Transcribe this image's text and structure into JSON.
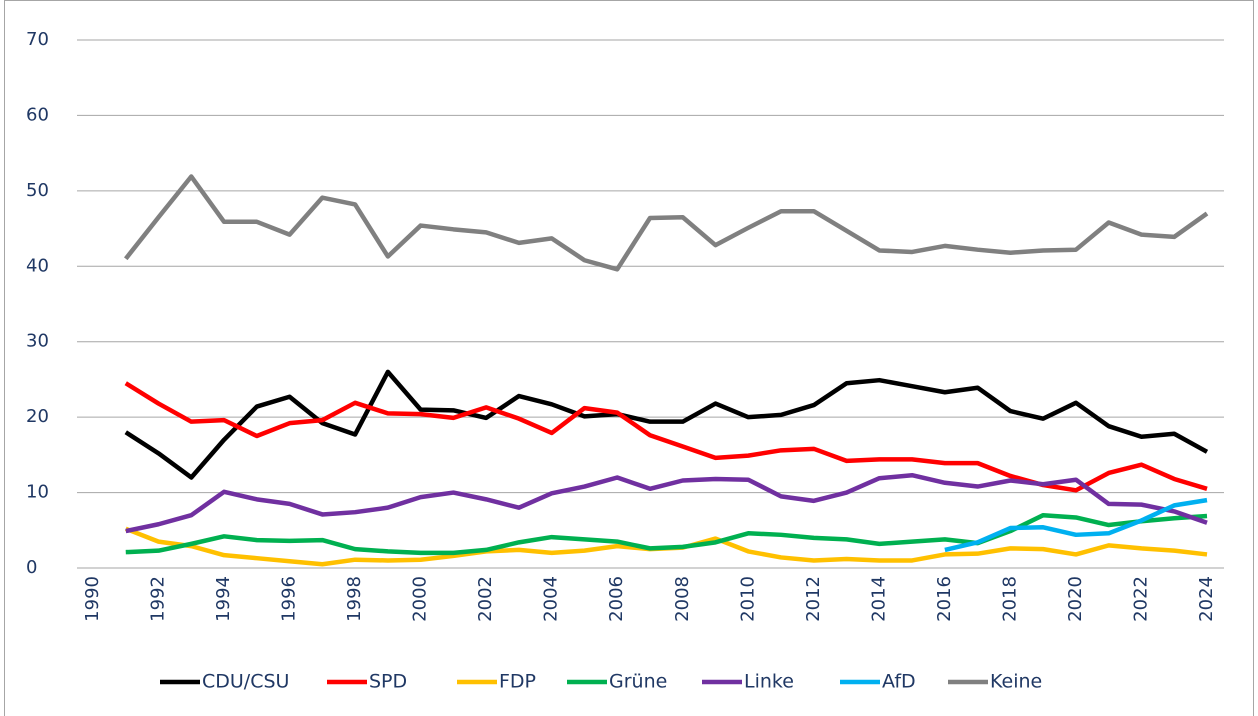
{
  "chart_data": {
    "type": "line",
    "x": [
      1991,
      1992,
      1993,
      1994,
      1995,
      1996,
      1997,
      1998,
      1999,
      2000,
      2001,
      2002,
      2003,
      2004,
      2005,
      2006,
      2007,
      2008,
      2009,
      2010,
      2011,
      2012,
      2013,
      2014,
      2015,
      2016,
      2017,
      2018,
      2019,
      2020,
      2021,
      2022,
      2023,
      2024
    ],
    "xlim": [
      1990,
      2024
    ],
    "xticks": [
      1990,
      1992,
      1994,
      1996,
      1998,
      2000,
      2002,
      2004,
      2006,
      2008,
      2010,
      2012,
      2014,
      2016,
      2018,
      2020,
      2022,
      2024
    ],
    "ylim": [
      0,
      70
    ],
    "yticks": [
      0,
      10,
      20,
      30,
      40,
      50,
      60,
      70
    ],
    "grid": true,
    "legend": "bottom",
    "series": [
      {
        "name": "CDU/CSU",
        "color": "#000000",
        "values": [
          18,
          15.2,
          12,
          17,
          21.4,
          22.7,
          19.2,
          17.7,
          26,
          21,
          20.9,
          19.9,
          22.8,
          21.7,
          20.1,
          20.4,
          19.4,
          19.4,
          21.8,
          20,
          20.3,
          21.6,
          24.5,
          24.9,
          24.1,
          23.3,
          23.9,
          20.8,
          19.8,
          21.9,
          18.8,
          17.4,
          17.8,
          15.4
        ]
      },
      {
        "name": "SPD",
        "color": "#ff0000",
        "values": [
          24.5,
          21.8,
          19.4,
          19.6,
          17.5,
          19.2,
          19.6,
          21.9,
          20.5,
          20.4,
          19.9,
          21.3,
          19.8,
          17.9,
          21.2,
          20.6,
          17.6,
          16.1,
          14.6,
          14.9,
          15.6,
          15.8,
          14.2,
          14.4,
          14.4,
          13.9,
          13.9,
          12.2,
          11,
          10.3,
          12.6,
          13.7,
          11.8,
          10.5
        ]
      },
      {
        "name": "FDP",
        "color": "#ffc000",
        "values": [
          5.2,
          3.5,
          2.9,
          1.7,
          1.3,
          0.9,
          0.5,
          1.1,
          1,
          1.1,
          1.6,
          2.2,
          2.4,
          2,
          2.3,
          2.9,
          2.5,
          2.7,
          3.9,
          2.2,
          1.4,
          1,
          1.2,
          1,
          1,
          1.8,
          1.9,
          2.6,
          2.5,
          1.8,
          3,
          2.6,
          2.3,
          1.8
        ]
      },
      {
        "name": "Grüne",
        "color": "#00b050",
        "values": [
          2.1,
          2.3,
          3.2,
          4.2,
          3.7,
          3.6,
          3.7,
          2.5,
          2.2,
          2,
          2,
          2.4,
          3.4,
          4.1,
          3.8,
          3.5,
          2.6,
          2.8,
          3.4,
          4.6,
          4.4,
          4,
          3.8,
          3.2,
          3.5,
          3.8,
          3.3,
          4.9,
          7,
          6.7,
          5.7,
          6.2,
          6.6,
          6.9
        ]
      },
      {
        "name": "Linke",
        "color": "#7030a0",
        "values": [
          4.9,
          5.8,
          7,
          10.1,
          9.1,
          8.5,
          7.1,
          7.4,
          8,
          9.4,
          10,
          9.1,
          8,
          9.9,
          10.8,
          12,
          10.5,
          11.6,
          11.8,
          11.7,
          9.5,
          8.9,
          10,
          11.9,
          12.3,
          11.3,
          10.8,
          11.6,
          11.1,
          11.7,
          8.5,
          8.4,
          7.5,
          6
        ]
      },
      {
        "name": "AfD",
        "color": "#00b0f0",
        "values": [
          null,
          null,
          null,
          null,
          null,
          null,
          null,
          null,
          null,
          null,
          null,
          null,
          null,
          null,
          null,
          null,
          null,
          null,
          null,
          null,
          null,
          null,
          null,
          null,
          null,
          2.4,
          3.4,
          5.3,
          5.4,
          4.4,
          4.6,
          6.3,
          8.3,
          9
        ]
      },
      {
        "name": "Keine",
        "color": "#808080",
        "values": [
          41,
          46.5,
          51.9,
          45.9,
          45.9,
          44.2,
          49.1,
          48.2,
          41.3,
          45.4,
          44.9,
          44.5,
          43.1,
          43.7,
          40.8,
          39.6,
          46.4,
          46.5,
          42.8,
          45.1,
          47.3,
          47.3,
          44.7,
          42.1,
          41.9,
          42.7,
          42.2,
          41.8,
          42.1,
          42.2,
          45.8,
          44.2,
          43.9,
          47
        ]
      }
    ]
  }
}
